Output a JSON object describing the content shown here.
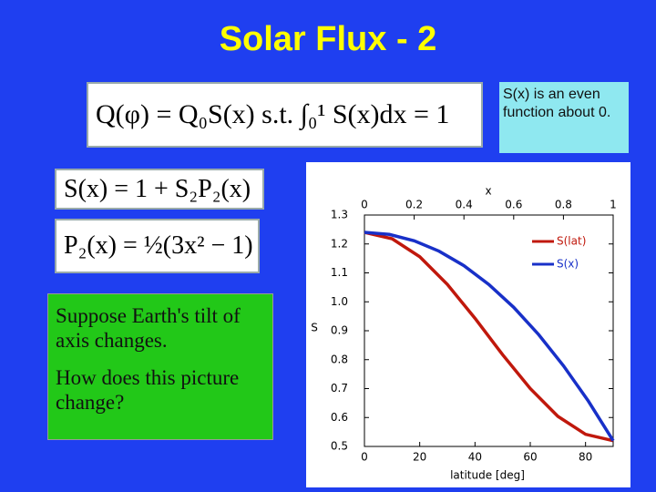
{
  "title": "Solar Flux - 2",
  "equations": [
    "Q(φ) = Q₀S(x) s.t. ∫₀¹ S(x)dx = 1",
    "S(x) = 1 + S₂P₂(x)",
    "P₂(x) = ½(3x² − 1)"
  ],
  "note": "S(x) is an even function about 0.",
  "questions": [
    "Suppose Earth's tilt of axis changes.",
    "How does this picture change?"
  ],
  "chart_data": {
    "type": "line",
    "xlabel": "latitude [deg]",
    "x2label": "x",
    "ylabel": "S",
    "xlim": [
      0,
      90
    ],
    "xticks": [
      0,
      20,
      40,
      60,
      80
    ],
    "x2lim": [
      0,
      1
    ],
    "x2ticks": [
      0,
      0.2,
      0.4,
      0.6,
      0.8,
      1
    ],
    "ylim": [
      0.5,
      1.3
    ],
    "yticks": [
      0.5,
      0.6,
      0.7,
      0.8,
      0.9,
      {
        "value": 1,
        "label": "1.0"
      },
      1.1,
      1.2,
      1.3
    ],
    "series": [
      {
        "name": "S(lat)",
        "color": "#c0180c",
        "x": [
          0,
          10,
          20,
          30,
          40,
          50,
          60,
          70,
          80,
          90
        ],
        "values": [
          1.24,
          1.218,
          1.156,
          1.06,
          0.943,
          0.817,
          0.7,
          0.604,
          0.542,
          0.52
        ]
      },
      {
        "name": "S(x)",
        "color": "#1830c8",
        "axis": "x2",
        "x": [
          0,
          0.1,
          0.2,
          0.3,
          0.4,
          0.5,
          0.6,
          0.7,
          0.8,
          0.9,
          1
        ],
        "values": [
          1.24,
          1.233,
          1.211,
          1.175,
          1.125,
          1.06,
          0.981,
          0.887,
          0.779,
          0.657,
          0.52
        ]
      }
    ]
  }
}
